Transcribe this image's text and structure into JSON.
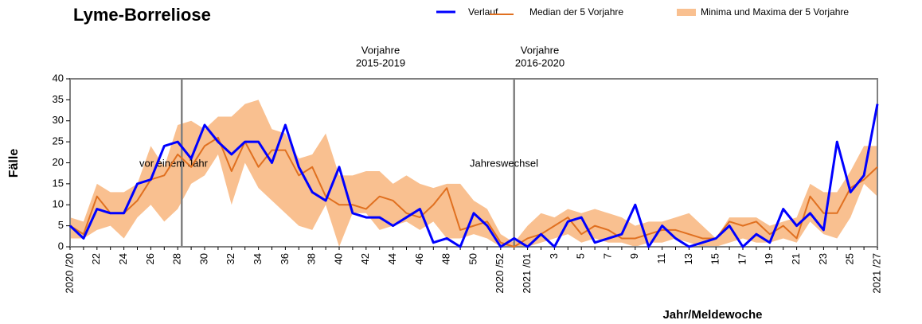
{
  "chart_data": {
    "type": "line",
    "title": "Lyme-Borreliose",
    "y_label": "Fälle",
    "x_label": "Jahr/Meldewoche",
    "annotations": {
      "prev1": [
        "Vorjahre",
        "2015-2019"
      ],
      "prev2": [
        "Vorjahre",
        "2016-2020"
      ],
      "year_ago": "vor einem Jahr",
      "year_change": "Jahreswechsel"
    },
    "categories": [
      "2020 /20",
      null,
      "22",
      null,
      "24",
      null,
      "26",
      null,
      "28",
      null,
      "30",
      null,
      "32",
      null,
      "34",
      null,
      "36",
      null,
      "38",
      null,
      "40",
      null,
      "42",
      null,
      "44",
      null,
      "46",
      null,
      "48",
      null,
      "50",
      null,
      "2020 /52",
      null,
      "2021 /01",
      null,
      "3",
      null,
      "5",
      null,
      "7",
      null,
      "9",
      null,
      "11",
      null,
      "13",
      null,
      "15",
      null,
      "17",
      null,
      "19",
      null,
      "21",
      null,
      "23",
      null,
      "25",
      null,
      "2021 /27"
    ],
    "series": [
      {
        "name": "Verlauf",
        "color": "#0000ff",
        "values": [
          5,
          2,
          9,
          8,
          8,
          15,
          16,
          24,
          25,
          21,
          29,
          25,
          22,
          25,
          25,
          20,
          29,
          19,
          13,
          11,
          19,
          8,
          7,
          7,
          5,
          7,
          9,
          1,
          2,
          0,
          8,
          5,
          0,
          2,
          0,
          3,
          0,
          6,
          7,
          1,
          2,
          3,
          10,
          0,
          5,
          2,
          0,
          1,
          2,
          5,
          0,
          3,
          1,
          9,
          5,
          8,
          4,
          25,
          13,
          17,
          34
        ]
      },
      {
        "name": "Median der 5 Vorjahre",
        "color": "#e07020",
        "values": [
          5,
          3,
          12,
          8,
          8,
          11,
          16,
          17,
          22,
          19,
          24,
          26,
          18,
          25,
          19,
          23,
          23,
          17,
          19,
          12,
          10,
          10,
          9,
          12,
          11,
          8,
          7,
          10,
          14,
          4,
          5,
          6,
          1,
          0,
          2,
          3,
          5,
          7,
          3,
          5,
          4,
          2,
          2,
          3,
          4,
          4,
          3,
          2,
          2,
          6,
          5,
          6,
          3,
          5,
          2,
          12,
          8,
          8,
          14,
          16,
          19
        ]
      },
      {
        "name": "Minima und Maxima der 5 Vorjahre",
        "color": "#f9c090",
        "max": [
          7,
          6,
          15,
          13,
          13,
          15,
          24,
          19,
          29,
          30,
          28,
          31,
          31,
          34,
          35,
          28,
          27,
          21,
          22,
          27,
          17,
          17,
          18,
          18,
          15,
          17,
          15,
          14,
          15,
          15,
          11,
          9,
          3,
          1,
          5,
          8,
          7,
          9,
          8,
          9,
          8,
          7,
          5,
          6,
          6,
          7,
          8,
          5,
          2,
          7,
          7,
          7,
          5,
          6,
          7,
          15,
          13,
          13,
          18,
          24,
          24
        ],
        "min": [
          2,
          2,
          4,
          5,
          2,
          7,
          10,
          6,
          9,
          15,
          17,
          22,
          10,
          20,
          14,
          11,
          8,
          5,
          4,
          10,
          0,
          8,
          8,
          4,
          5,
          6,
          4,
          6,
          2,
          2,
          3,
          2,
          0,
          0,
          0,
          1,
          2,
          3,
          1,
          2,
          1,
          1,
          0,
          1,
          1,
          2,
          1,
          0,
          0,
          1,
          2,
          1,
          1,
          2,
          1,
          6,
          3,
          2,
          7,
          15,
          12
        ]
      }
    ],
    "ylim": [
      0,
      40
    ],
    "yticks": [
      0,
      5,
      10,
      15,
      20,
      25,
      30,
      35,
      40
    ]
  }
}
